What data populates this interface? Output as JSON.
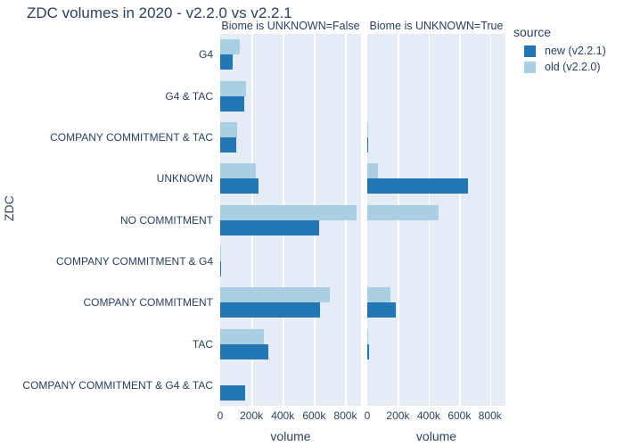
{
  "title": "ZDC volumes in 2020 - v2.2.0 vs v2.2.1",
  "y_axis_title": "ZDC",
  "x_axis_title": "volume",
  "legend": {
    "title": "source",
    "entries": [
      {
        "label": "new (v2.2.1)",
        "color": "#2276b4"
      },
      {
        "label": "old (v2.2.0)",
        "color": "#a9cfe3"
      }
    ]
  },
  "colors": {
    "text": "#2a3f5f",
    "plot_background": "#e5ecf6",
    "gridline": "#ffffff",
    "new_series": "#2276b4",
    "old_series": "#a9cfe3"
  },
  "chart_data": {
    "type": "bar",
    "orientation": "horizontal",
    "title": "ZDC volumes in 2020 - v2.2.0 vs v2.2.1",
    "xlabel": "volume",
    "ylabel": "ZDC",
    "xlim": [
      0,
      900000
    ],
    "grid": true,
    "legend_position": "right",
    "categories": [
      "G4",
      "G4 & TAC",
      "COMPANY COMMITMENT & TAC",
      "UNKNOWN",
      "NO COMMITMENT",
      "COMPANY COMMITMENT & G4",
      "COMPANY COMMITMENT",
      "TAC",
      "COMPANY COMMITMENT & G4 & TAC"
    ],
    "x_ticks": {
      "labels": [
        "0",
        "200k",
        "400k",
        "600k",
        "800k"
      ],
      "values": [
        0,
        200000,
        400000,
        600000,
        800000
      ]
    },
    "facets": [
      {
        "title": "Biome is UNKNOWN=False",
        "series": [
          {
            "name": "old (v2.2.0)",
            "color": "#a9cfe3",
            "values": [
              125000,
              165000,
              110000,
              225000,
              870000,
              8000,
              700000,
              280000,
              0
            ]
          },
          {
            "name": "new (v2.2.1)",
            "color": "#2276b4",
            "values": [
              80000,
              155000,
              105000,
              245000,
              630000,
              5000,
              640000,
              310000,
              160000
            ]
          }
        ]
      },
      {
        "title": "Biome is UNKNOWN=True",
        "series": [
          {
            "name": "old (v2.2.0)",
            "color": "#a9cfe3",
            "values": [
              0,
              0,
              8000,
              72000,
              465000,
              0,
              150000,
              8000,
              0
            ]
          },
          {
            "name": "new (v2.2.1)",
            "color": "#2276b4",
            "values": [
              0,
              0,
              8000,
              655000,
              0,
              0,
              185000,
              10000,
              0
            ]
          }
        ]
      }
    ]
  }
}
